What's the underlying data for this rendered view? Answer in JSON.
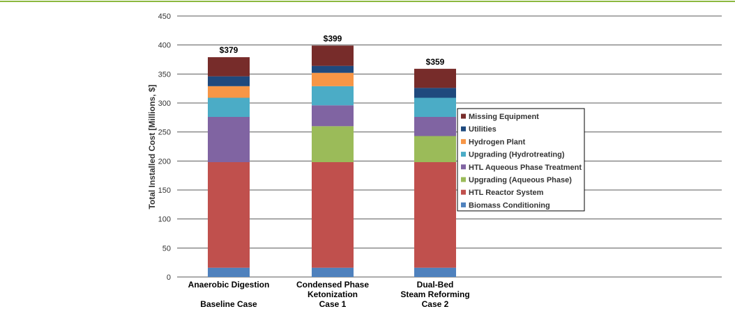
{
  "chart_data": {
    "type": "bar",
    "stacked": true,
    "ylabel": "Total Installed Cost [Millions, $]",
    "ylim": [
      0,
      450
    ],
    "yticks": [
      0,
      50,
      100,
      150,
      200,
      250,
      300,
      350,
      400,
      450
    ],
    "grid": true,
    "legend_position": "right",
    "categories": [
      [
        "Anaerobic Digestion",
        "",
        "Baseline Case"
      ],
      [
        "Condensed Phase",
        "Ketonization",
        "Case 1"
      ],
      [
        "Dual-Bed",
        "Steam Reforming",
        "Case 2"
      ]
    ],
    "totals": [
      "$379",
      "$399",
      "$359"
    ],
    "series": [
      {
        "name": "Biomass Conditioning",
        "color": "#4f81bd",
        "values": [
          16,
          16,
          16
        ]
      },
      {
        "name": "HTL Reactor System",
        "color": "#c0504d",
        "values": [
          182,
          182,
          182
        ]
      },
      {
        "name": "Upgrading (Aqueous Phase)",
        "color": "#9bbb59",
        "values": [
          0,
          62,
          45
        ]
      },
      {
        "name": "HTL Aqueous Phase Treatment",
        "color": "#8064a2",
        "values": [
          78,
          36,
          33
        ]
      },
      {
        "name": "Upgrading (Hydrotreating)",
        "color": "#4bacc6",
        "values": [
          33,
          33,
          33
        ]
      },
      {
        "name": "Hydrogen Plant",
        "color": "#f79646",
        "values": [
          20,
          23,
          0
        ]
      },
      {
        "name": "Utilities",
        "color": "#1f497d",
        "values": [
          17,
          12,
          17
        ]
      },
      {
        "name": "Missing Equipment",
        "color": "#772c2a",
        "values": [
          33,
          35,
          33
        ]
      }
    ],
    "legend_order": [
      "Missing Equipment",
      "Utilities",
      "Hydrogen Plant",
      "Upgrading (Hydrotreating)",
      "HTL Aqueous Phase Treatment",
      "Upgrading (Aqueous Phase)",
      "HTL Reactor System",
      "Biomass Conditioning"
    ]
  }
}
